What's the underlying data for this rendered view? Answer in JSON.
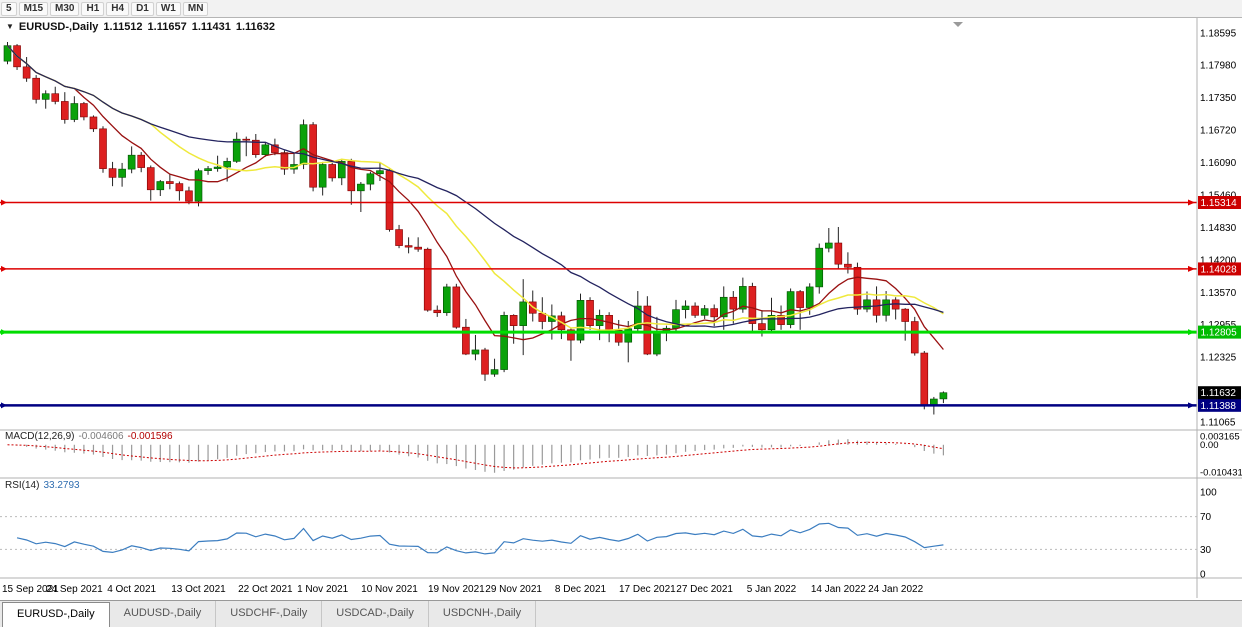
{
  "toolbar": {
    "timeframes": [
      "5",
      "M15",
      "M30",
      "H1",
      "H4",
      "D1",
      "W1",
      "MN"
    ]
  },
  "chart_title": {
    "symbol": "EURUSD-,Daily",
    "open": "1.11512",
    "high": "1.11657",
    "low": "1.11431",
    "close": "1.11632"
  },
  "chart_data": {
    "type": "candlestick",
    "symbol": "EURUSD",
    "timeframe": "Daily",
    "up_color": "#0aa10a",
    "down_color": "#dd2020",
    "wick_color": "#222222",
    "y_axis_labels": [
      {
        "text": "1.18595",
        "value": 1.18595
      },
      {
        "text": "1.17980",
        "value": 1.1798
      },
      {
        "text": "1.17350",
        "value": 1.1735
      },
      {
        "text": "1.16720",
        "value": 1.1672
      },
      {
        "text": "1.16090",
        "value": 1.1609
      },
      {
        "text": "1.15460",
        "value": 1.1546
      },
      {
        "text": "1.14830",
        "value": 1.1483
      },
      {
        "text": "1.14200",
        "value": 1.142
      },
      {
        "text": "1.13570",
        "value": 1.1357
      },
      {
        "text": "1.12955",
        "value": 1.12955
      },
      {
        "text": "1.12325",
        "value": 1.12325
      },
      {
        "text": "1.11065",
        "value": 1.11065
      }
    ],
    "y_range": [
      1.11065,
      1.18595
    ],
    "x_labels": [
      {
        "text": "15 Sep 2021",
        "i": 0
      },
      {
        "text": "24 Sep 2021",
        "i": 7
      },
      {
        "text": "4 Oct 2021",
        "i": 13
      },
      {
        "text": "13 Oct 2021",
        "i": 20
      },
      {
        "text": "22 Oct 2021",
        "i": 27
      },
      {
        "text": "1 Nov 2021",
        "i": 33
      },
      {
        "text": "10 Nov 2021",
        "i": 40
      },
      {
        "text": "19 Nov 2021",
        "i": 47
      },
      {
        "text": "29 Nov 2021",
        "i": 53
      },
      {
        "text": "8 Dec 2021",
        "i": 60
      },
      {
        "text": "17 Dec 2021",
        "i": 67
      },
      {
        "text": "27 Dec 2021",
        "i": 73
      },
      {
        "text": "5 Jan 2022",
        "i": 80
      },
      {
        "text": "14 Jan 2022",
        "i": 87
      },
      {
        "text": "24 Jan 2022",
        "i": 93
      }
    ],
    "hlines": [
      {
        "price": 1.15314,
        "label": "1.15314",
        "color": "#dd0000",
        "badge": "#cc0000",
        "width": 1.5
      },
      {
        "price": 1.14028,
        "label": "1.14028",
        "color": "#dd0000",
        "badge": "#cc0000",
        "width": 1.5
      },
      {
        "price": 1.12805,
        "label": "1.12805",
        "color": "#00dd00",
        "badge": "#00bb00",
        "width": 3
      },
      {
        "price": 1.11388,
        "label": "1.11388",
        "color": "#000082",
        "badge": "#000082",
        "width": 2.5
      }
    ],
    "current_price": {
      "value": 1.11632,
      "label": "1.11632",
      "badge": "#000000"
    },
    "moving_averages": [
      {
        "period": 8,
        "color": "#991111"
      },
      {
        "period": 16,
        "color": "#efe93c"
      },
      {
        "period": 28,
        "color": "#23235f"
      }
    ],
    "candles": [
      [
        1.1805,
        1.1842,
        1.1799,
        1.1835
      ],
      [
        1.1835,
        1.1838,
        1.1788,
        1.1794
      ],
      [
        1.1794,
        1.1813,
        1.1765,
        1.1772
      ],
      [
        1.1772,
        1.1778,
        1.1723,
        1.1731
      ],
      [
        1.1731,
        1.17485,
        1.1713,
        1.1742
      ],
      [
        1.1742,
        1.17555,
        1.17215,
        1.1727
      ],
      [
        1.1727,
        1.1745,
        1.1684,
        1.1692
      ],
      [
        1.1692,
        1.1737,
        1.1687,
        1.1723
      ],
      [
        1.1723,
        1.1726,
        1.16905,
        1.1697
      ],
      [
        1.1697,
        1.17,
        1.1668,
        1.1674
      ],
      [
        1.1674,
        1.1679,
        1.1589,
        1.1597
      ],
      [
        1.1597,
        1.161,
        1.1563,
        1.158
      ],
      [
        1.158,
        1.1608,
        1.1562,
        1.1596
      ],
      [
        1.1596,
        1.164,
        1.1588,
        1.1623
      ],
      [
        1.1623,
        1.1629,
        1.159,
        1.1599
      ],
      [
        1.1599,
        1.1603,
        1.1535,
        1.1556
      ],
      [
        1.1556,
        1.1575,
        1.1544,
        1.1572
      ],
      [
        1.1572,
        1.1586,
        1.1557,
        1.1568
      ],
      [
        1.1568,
        1.1572,
        1.1535,
        1.1554
      ],
      [
        1.1554,
        1.1562,
        1.1528,
        1.1534
      ],
      [
        1.1534,
        1.1597,
        1.1524,
        1.1593
      ],
      [
        1.1593,
        1.1602,
        1.1585,
        1.1597
      ],
      [
        1.1597,
        1.1622,
        1.1591,
        1.16
      ],
      [
        1.16,
        1.1618,
        1.1572,
        1.1611
      ],
      [
        1.1611,
        1.1667,
        1.1608,
        1.1654
      ],
      [
        1.1654,
        1.1659,
        1.1621,
        1.1652
      ],
      [
        1.1652,
        1.1664,
        1.1618,
        1.1624
      ],
      [
        1.1624,
        1.1647,
        1.162,
        1.1643
      ],
      [
        1.1643,
        1.1655,
        1.1623,
        1.1628
      ],
      [
        1.1628,
        1.1632,
        1.1585,
        1.1596
      ],
      [
        1.1596,
        1.1626,
        1.1587,
        1.1605
      ],
      [
        1.1605,
        1.1692,
        1.1596,
        1.1682
      ],
      [
        1.1682,
        1.1687,
        1.1553,
        1.1561
      ],
      [
        1.1561,
        1.161,
        1.1545,
        1.1605
      ],
      [
        1.1605,
        1.1608,
        1.1572,
        1.1579
      ],
      [
        1.1579,
        1.1616,
        1.1565,
        1.1611
      ],
      [
        1.1611,
        1.1616,
        1.1527,
        1.1554
      ],
      [
        1.1554,
        1.1571,
        1.1513,
        1.1567
      ],
      [
        1.1567,
        1.1591,
        1.1555,
        1.1587
      ],
      [
        1.1587,
        1.1608,
        1.1573,
        1.1593
      ],
      [
        1.1593,
        1.1596,
        1.1475,
        1.1479
      ],
      [
        1.1479,
        1.1488,
        1.1443,
        1.1448
      ],
      [
        1.1448,
        1.1464,
        1.1433,
        1.1445
      ],
      [
        1.1445,
        1.1464,
        1.1436,
        1.1441
      ],
      [
        1.1441,
        1.1444,
        1.132,
        1.1323
      ],
      [
        1.1323,
        1.1332,
        1.131,
        1.1318
      ],
      [
        1.1318,
        1.1374,
        1.1312,
        1.1368
      ],
      [
        1.1368,
        1.1374,
        1.1287,
        1.129
      ],
      [
        1.129,
        1.1306,
        1.1236,
        1.1238
      ],
      [
        1.1238,
        1.1275,
        1.1226,
        1.1246
      ],
      [
        1.1246,
        1.125,
        1.1186,
        1.1199
      ],
      [
        1.1199,
        1.1229,
        1.1194,
        1.1208
      ],
      [
        1.1208,
        1.132,
        1.1203,
        1.1313
      ],
      [
        1.1313,
        1.1315,
        1.1258,
        1.1293
      ],
      [
        1.1293,
        1.1383,
        1.1236,
        1.1339
      ],
      [
        1.1339,
        1.1361,
        1.1301,
        1.1317
      ],
      [
        1.1317,
        1.1348,
        1.1286,
        1.1301
      ],
      [
        1.1301,
        1.1334,
        1.1266,
        1.1312
      ],
      [
        1.1312,
        1.132,
        1.1267,
        1.1285
      ],
      [
        1.1285,
        1.1289,
        1.1225,
        1.1265
      ],
      [
        1.1265,
        1.1355,
        1.1259,
        1.1342
      ],
      [
        1.1342,
        1.1348,
        1.1285,
        1.1293
      ],
      [
        1.1293,
        1.1324,
        1.1265,
        1.1313
      ],
      [
        1.1313,
        1.1319,
        1.1261,
        1.1284
      ],
      [
        1.1284,
        1.1304,
        1.1254,
        1.1261
      ],
      [
        1.1261,
        1.1302,
        1.1222,
        1.1287
      ],
      [
        1.1287,
        1.136,
        1.1281,
        1.1331
      ],
      [
        1.1331,
        1.135,
        1.1236,
        1.1238
      ],
      [
        1.1238,
        1.131,
        1.1234,
        1.128
      ],
      [
        1.128,
        1.1293,
        1.1263,
        1.1288
      ],
      [
        1.1288,
        1.1343,
        1.1279,
        1.1324
      ],
      [
        1.1324,
        1.1342,
        1.1307,
        1.1331
      ],
      [
        1.1331,
        1.1338,
        1.1308,
        1.1313
      ],
      [
        1.1313,
        1.1333,
        1.1306,
        1.1326
      ],
      [
        1.1326,
        1.1334,
        1.1292,
        1.131
      ],
      [
        1.131,
        1.1369,
        1.1285,
        1.1348
      ],
      [
        1.1348,
        1.136,
        1.1297,
        1.1325
      ],
      [
        1.1325,
        1.1386,
        1.1318,
        1.1369
      ],
      [
        1.1369,
        1.1376,
        1.1279,
        1.1297
      ],
      [
        1.1297,
        1.1323,
        1.1272,
        1.1285
      ],
      [
        1.1285,
        1.1347,
        1.128,
        1.1313
      ],
      [
        1.1313,
        1.1332,
        1.1285,
        1.1295
      ],
      [
        1.1295,
        1.1365,
        1.1288,
        1.1359
      ],
      [
        1.1359,
        1.1362,
        1.1285,
        1.1328
      ],
      [
        1.1328,
        1.1375,
        1.1314,
        1.1368
      ],
      [
        1.1368,
        1.1452,
        1.1355,
        1.1443
      ],
      [
        1.1443,
        1.1482,
        1.1435,
        1.1453
      ],
      [
        1.1453,
        1.1484,
        1.1402,
        1.1412
      ],
      [
        1.1412,
        1.1435,
        1.1394,
        1.1406
      ],
      [
        1.1406,
        1.1415,
        1.1314,
        1.1325
      ],
      [
        1.1325,
        1.1359,
        1.1319,
        1.1343
      ],
      [
        1.1343,
        1.1369,
        1.1299,
        1.1313
      ],
      [
        1.1313,
        1.136,
        1.1301,
        1.1343
      ],
      [
        1.1343,
        1.1348,
        1.1305,
        1.1325
      ],
      [
        1.1325,
        1.1327,
        1.1264,
        1.1301
      ],
      [
        1.1301,
        1.131,
        1.1235,
        1.124
      ],
      [
        1.124,
        1.1244,
        1.1131,
        1.1138
      ],
      [
        1.1138,
        1.1155,
        1.1121,
        1.1151
      ],
      [
        1.11512,
        1.11657,
        1.11431,
        1.11632
      ]
    ]
  },
  "macd": {
    "title": "MACD(12,26,9)",
    "value_main": "-0.004606",
    "value_signal": "-0.001596",
    "fast": 12,
    "slow": 26,
    "signal": 9,
    "histogram_color": "#9a9a9a",
    "signal_color": "#cc0000",
    "axis_labels": [
      {
        "text": "0.003165",
        "value": 0.003165
      },
      {
        "text": "0.00",
        "value": 0
      },
      {
        "text": "-0.010431",
        "value": -0.010431
      }
    ]
  },
  "rsi": {
    "title": "RSI(14)",
    "value": "33.2793",
    "period": 14,
    "line_color": "#3b7dc0",
    "levels": [
      70,
      30
    ],
    "axis_labels": [
      {
        "text": "100",
        "value": 100
      },
      {
        "text": "70",
        "value": 70
      },
      {
        "text": "30",
        "value": 30
      },
      {
        "text": "0",
        "value": 0
      }
    ]
  },
  "tabs": [
    {
      "label": "EURUSD-,Daily",
      "active": true
    },
    {
      "label": "AUDUSD-,Daily",
      "active": false
    },
    {
      "label": "USDCHF-,Daily",
      "active": false
    },
    {
      "label": "USDCAD-,Daily",
      "active": false
    },
    {
      "label": "USDCNH-,Daily",
      "active": false
    }
  ]
}
